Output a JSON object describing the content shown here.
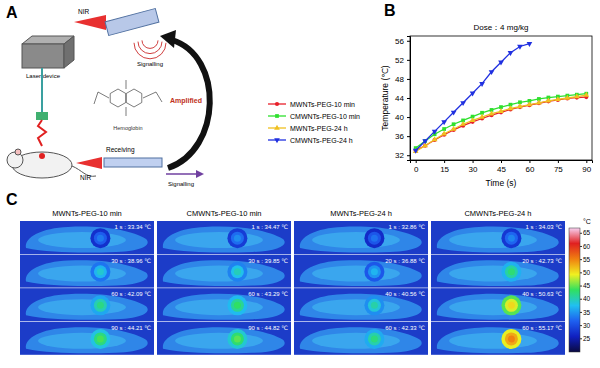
{
  "panel_labels": [
    "A",
    "B",
    "C"
  ],
  "diagram": {
    "laser": "Laser device",
    "nir_top": "NIR",
    "signalling_top": "Signalling",
    "structure": "Hemoglobin",
    "amplified": "Amplified",
    "receiving": "Receiving",
    "nir_bottom": "NIR",
    "signalling_bottom": "Signalling"
  },
  "chart_data": {
    "type": "line",
    "annotations": [
      "Dose：4 mg/kg"
    ],
    "x_label": "Time (s)",
    "y_label": "Temperature (℃)",
    "x": [
      0,
      5,
      10,
      15,
      20,
      25,
      30,
      35,
      40,
      45,
      50,
      55,
      60,
      65,
      70,
      75,
      80,
      85,
      90
    ],
    "series": [
      {
        "name": "MWNTs-PEG-10 min",
        "color": "#e8202a",
        "marker": "circle",
        "line_style": "solid",
        "values": [
          33.0,
          34.0,
          35.2,
          36.3,
          37.3,
          38.2,
          39.0,
          39.7,
          40.4,
          41.0,
          41.6,
          42.1,
          42.5,
          42.9,
          43.3,
          43.6,
          43.9,
          44.1,
          44.2
        ]
      },
      {
        "name": "CMWNTs-PEG-10 min",
        "color": "#2ee02e",
        "marker": "square",
        "line_style": "solid",
        "values": [
          33.5,
          35.0,
          36.4,
          37.5,
          38.5,
          39.3,
          40.1,
          40.9,
          41.5,
          42.1,
          42.6,
          43.1,
          43.4,
          43.8,
          44.1,
          44.3,
          44.5,
          44.7,
          44.9
        ]
      },
      {
        "name": "MWNTs-PEG-24 h",
        "color": "#f0c020",
        "marker": "triangle",
        "line_style": "solid",
        "values": [
          32.8,
          34.0,
          35.3,
          36.5,
          37.5,
          38.5,
          39.3,
          40.0,
          40.7,
          41.2,
          41.8,
          42.2,
          42.6,
          43.0,
          43.4,
          43.7,
          44.0,
          44.3,
          44.6
        ]
      },
      {
        "name": "CMWNTs-PEG-24 h",
        "color": "#2030e0",
        "marker": "triangle-down",
        "line_style": "solid",
        "values": [
          33.0,
          35.0,
          37.0,
          39.0,
          41.0,
          43.0,
          45.0,
          47.0,
          49.5,
          51.5,
          53.5,
          54.8,
          55.4,
          null,
          null,
          null,
          null,
          null,
          null
        ]
      }
    ],
    "xlim": [
      -3,
      93
    ],
    "xticks": [
      0,
      15,
      30,
      45,
      60,
      75,
      90
    ],
    "ylim": [
      31,
      57
    ],
    "yticks": [
      32,
      36,
      40,
      44,
      48,
      52,
      56
    ],
    "grid": false,
    "legend": "left"
  },
  "thermal": {
    "columns": [
      {
        "title": "MWNTs-PEG-10 min",
        "frames": [
          {
            "label": "1 s : 33.34 ℃",
            "temp": 33.34
          },
          {
            "label": "30 s : 38.96 ℃",
            "temp": 38.96
          },
          {
            "label": "60 s : 42.09 ℃",
            "temp": 42.09
          },
          {
            "label": "90 s : 44.21 ℃",
            "temp": 44.21
          }
        ]
      },
      {
        "title": "CMWNTs-PEG-10 min",
        "frames": [
          {
            "label": "1 s : 34.47 ℃",
            "temp": 34.47
          },
          {
            "label": "30 s : 39.85 ℃",
            "temp": 39.85
          },
          {
            "label": "60 s : 43.29 ℃",
            "temp": 43.29
          },
          {
            "label": "90 s : 44.82 ℃",
            "temp": 44.82
          }
        ]
      },
      {
        "title": "MWNTs-PEG-24 h",
        "frames": [
          {
            "label": "1 s : 32.86 ℃",
            "temp": 32.86
          },
          {
            "label": "20 s : 36.88 ℃",
            "temp": 36.88
          },
          {
            "label": "40 s : 40.56 ℃",
            "temp": 40.56
          },
          {
            "label": "60 s : 42.33 ℃",
            "temp": 42.33
          }
        ]
      },
      {
        "title": "CMWNTs-PEG-24 h",
        "frames": [
          {
            "label": "1 s : 34.03 ℃",
            "temp": 34.03
          },
          {
            "label": "20 s : 42.73 ℃",
            "temp": 42.73
          },
          {
            "label": "40 s : 50.63 ℃",
            "temp": 50.63
          },
          {
            "label": "60 s : 55.17 ℃",
            "temp": 55.17
          }
        ]
      }
    ],
    "colorbar": {
      "unit": "°C",
      "range": [
        20,
        67
      ],
      "ticks": [
        25,
        30,
        35,
        40,
        45,
        50,
        55,
        60,
        65
      ]
    }
  }
}
